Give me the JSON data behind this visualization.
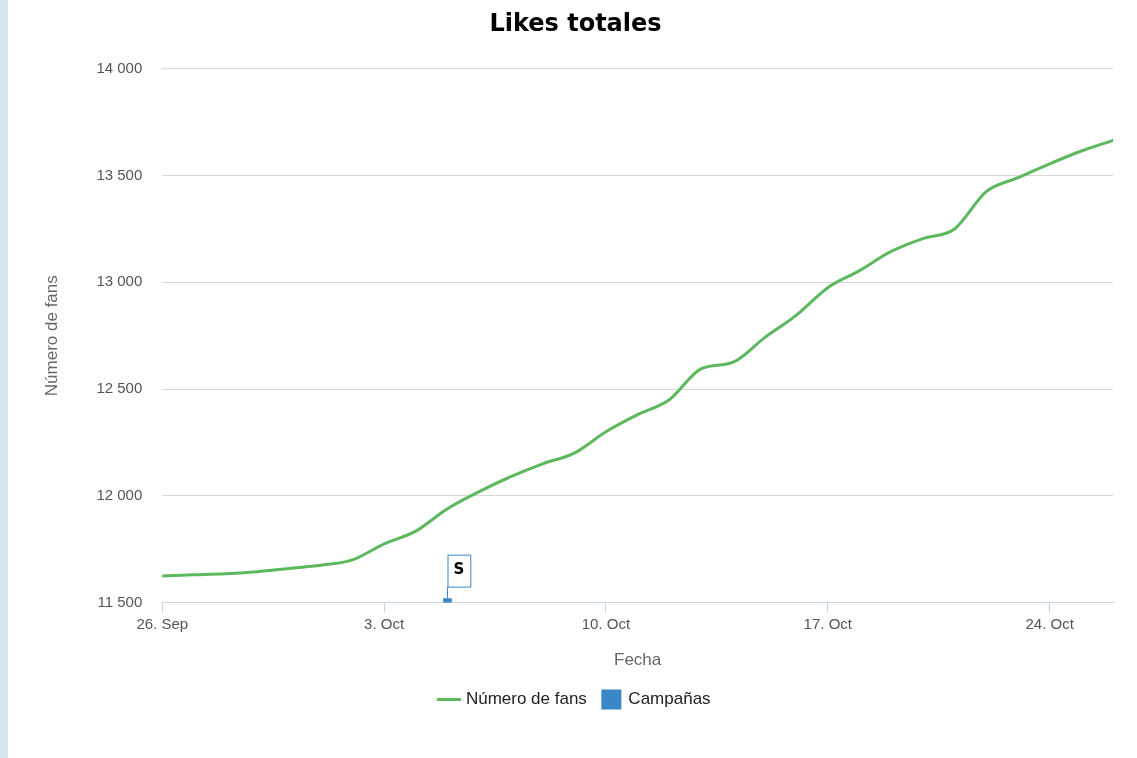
{
  "chart_data": {
    "type": "line",
    "title": "Likes totales",
    "xlabel": "Fecha",
    "ylabel": "Número de fans",
    "xlim": [
      "--09-26",
      "--10-26"
    ],
    "xticks": [
      {
        "value": "--09-26",
        "label": "26. Sep"
      },
      {
        "value": "--10-03",
        "label": "3. Oct"
      },
      {
        "value": "--10-10",
        "label": "10. Oct"
      },
      {
        "value": "--10-17",
        "label": "17. Oct"
      },
      {
        "value": "--10-24",
        "label": "24. Oct"
      }
    ],
    "ylim": [
      11500,
      14000
    ],
    "yticks": [
      {
        "value": 11500,
        "label": "11 500"
      },
      {
        "value": 12000,
        "label": "12 000"
      },
      {
        "value": 12500,
        "label": "12 500"
      },
      {
        "value": 13000,
        "label": "13 000"
      },
      {
        "value": 13500,
        "label": "13 500"
      },
      {
        "value": 14000,
        "label": "14 000"
      }
    ],
    "grid": "y",
    "legend": "bottom",
    "x": [
      "--09-26",
      "--09-27",
      "--09-28",
      "--09-29",
      "--09-30",
      "--10-01",
      "--10-02",
      "--10-03",
      "--10-04",
      "--10-05",
      "--10-06",
      "--10-07",
      "--10-08",
      "--10-09",
      "--10-10",
      "--10-11",
      "--10-12",
      "--10-13",
      "--10-14",
      "--10-15",
      "--10-16",
      "--10-17",
      "--10-18",
      "--10-19",
      "--10-20",
      "--10-21",
      "--10-22",
      "--10-23",
      "--10-24",
      "--10-25",
      "--10-26"
    ],
    "series": [
      {
        "name": "Número de fans",
        "color": "#5cb85c",
        "marker": "none",
        "values": [
          11625,
          11630,
          11635,
          11645,
          11660,
          11675,
          11700,
          11775,
          11835,
          11940,
          12020,
          12090,
          12150,
          12200,
          12300,
          12380,
          12450,
          12595,
          12625,
          12740,
          12845,
          12975,
          13055,
          13145,
          13205,
          13250,
          13425,
          13490,
          13555,
          13615,
          13665
        ]
      },
      {
        "name": "Campañas",
        "type": "scatter",
        "color": "#3a87c8",
        "marker": "square",
        "x": [
          "--10-05"
        ],
        "values": [
          11500
        ]
      }
    ],
    "annotations": [
      {
        "text": "S",
        "x": "--10-05",
        "y": 11500
      }
    ]
  }
}
